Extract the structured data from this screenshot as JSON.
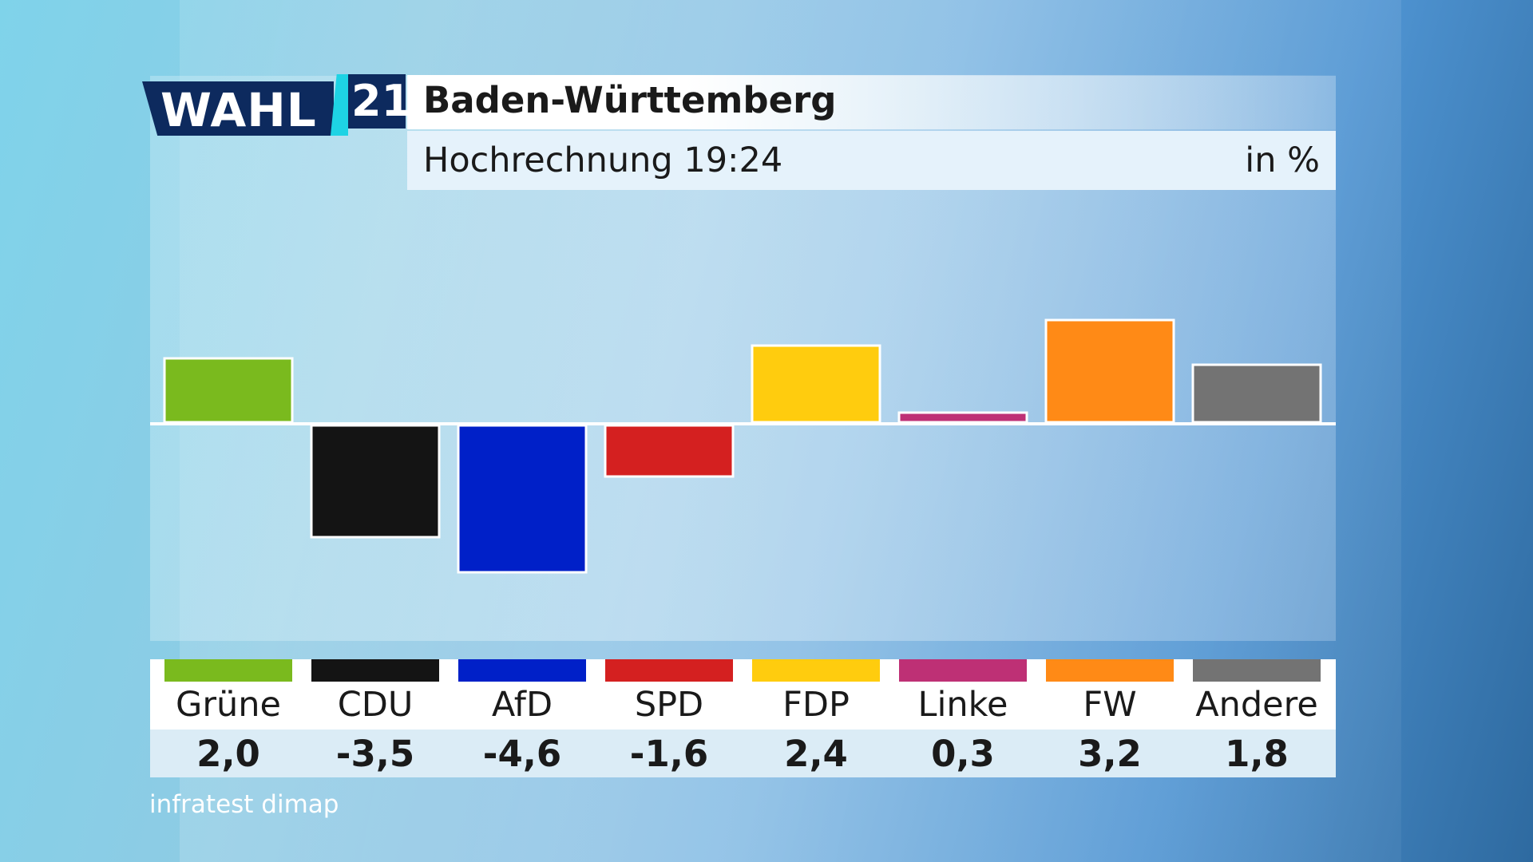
{
  "logo": {
    "wahl": "WAHL",
    "year": "21"
  },
  "header": {
    "title": "Baden-Württemberg",
    "subtitle": "Hochrechnung 19:24",
    "unit": "in %"
  },
  "source": "infratest dimap",
  "colors": {
    "Grüne": "#7aba1e",
    "CDU": "#141414",
    "AfD": "#0020c8",
    "SPD": "#d42020",
    "FDP": "#ffcc0e",
    "Linke": "#be3075",
    "FW": "#ff8a16",
    "Andere": "#737373"
  },
  "parties": [
    {
      "name": "Grüne",
      "value": "2,0"
    },
    {
      "name": "CDU",
      "value": "-3,5"
    },
    {
      "name": "AfD",
      "value": "-4,6"
    },
    {
      "name": "SPD",
      "value": "-1,6"
    },
    {
      "name": "FDP",
      "value": "2,4"
    },
    {
      "name": "Linke",
      "value": "0,3"
    },
    {
      "name": "FW",
      "value": "3,2"
    },
    {
      "name": "Andere",
      "value": "1,8"
    }
  ],
  "chart_data": {
    "type": "bar",
    "title": "Baden-Württemberg",
    "subtitle": "Hochrechnung 19:24",
    "ylabel": "in %",
    "categories": [
      "Grüne",
      "CDU",
      "AfD",
      "SPD",
      "FDP",
      "Linke",
      "FW",
      "Andere"
    ],
    "values": [
      2.0,
      -3.5,
      -4.6,
      -1.6,
      2.4,
      0.3,
      3.2,
      1.8
    ],
    "ylim": [
      -4.8,
      4.8
    ],
    "grid": false,
    "legend": "bottom"
  }
}
